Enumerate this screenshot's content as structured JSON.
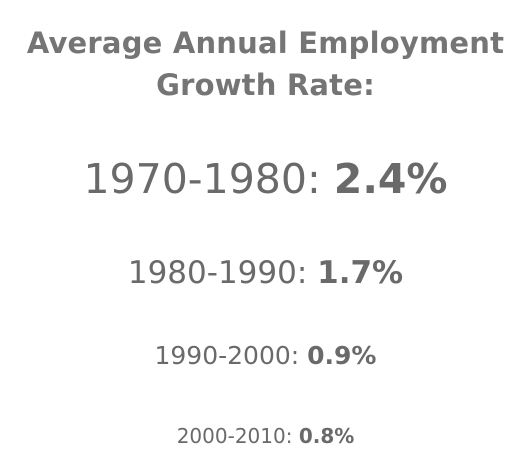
{
  "title": {
    "line1": "Average Annual Employment",
    "line2": "Growth Rate:"
  },
  "rows": [
    {
      "period": "1970-1980: ",
      "value": "2.4%"
    },
    {
      "period": "1980-1990: ",
      "value": "1.7%"
    },
    {
      "period": "1990-2000: ",
      "value": "0.9%"
    },
    {
      "period": "2000-2010: ",
      "value": "0.8%"
    }
  ]
}
